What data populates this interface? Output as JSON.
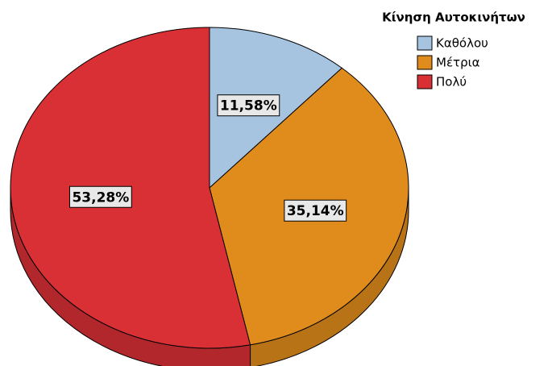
{
  "chart_data": {
    "type": "pie",
    "legend_title": "Κίνηση Αυτοκινήτων",
    "categories": [
      "Καθόλου",
      "Μέτρια",
      "Πολύ"
    ],
    "values": [
      11.58,
      35.14,
      53.28
    ],
    "value_labels": [
      "11,58%",
      "35,14%",
      "53,28%"
    ],
    "colors": [
      "#a6c4e0",
      "#e08c1c",
      "#d93035"
    ],
    "legend": "top-right"
  }
}
